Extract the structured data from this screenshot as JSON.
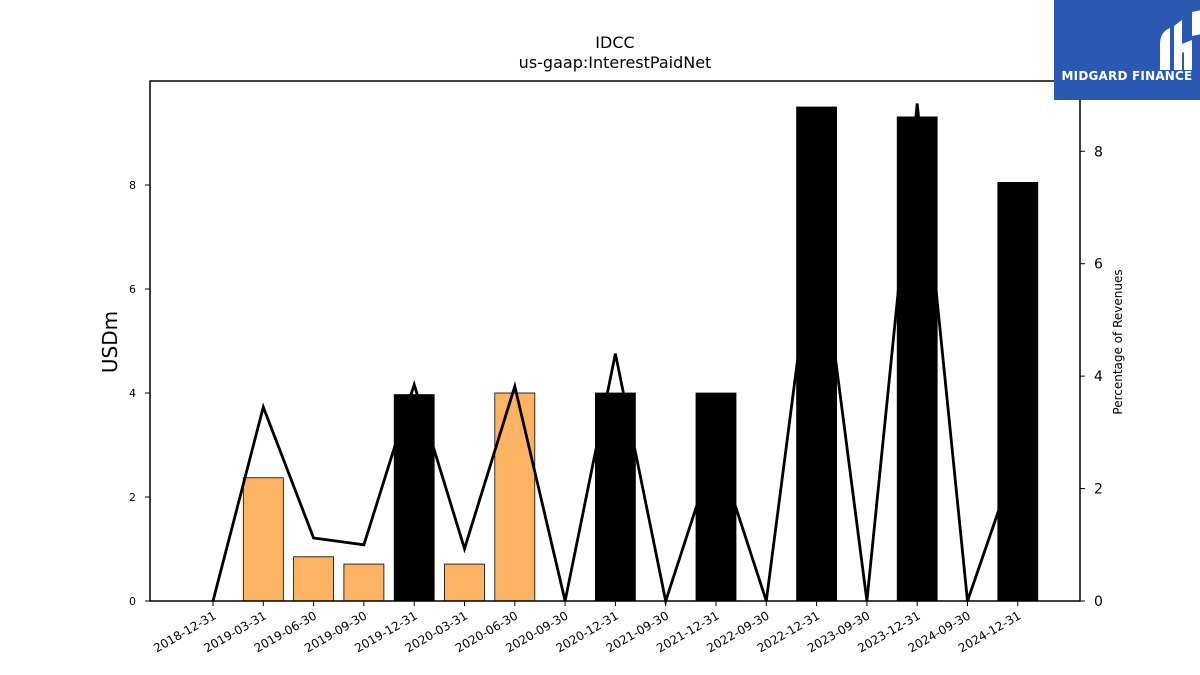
{
  "chart_data": {
    "type": "bar",
    "title": "IDCC",
    "subtitle": "us-gaap:InterestPaidNet",
    "ylabel": "USDm",
    "y2label": "Percentage of Revenues",
    "ylim": [
      0,
      10
    ],
    "y2lim": [
      0,
      9.25
    ],
    "yticks": [
      0,
      2,
      4,
      6,
      8
    ],
    "y2ticks": [
      0,
      2,
      4,
      6,
      8
    ],
    "categories": [
      "2018-12-31",
      "2019-03-31",
      "2019-06-30",
      "2019-09-30",
      "2019-12-31",
      "2020-03-31",
      "2020-06-30",
      "2020-09-30",
      "2020-12-31",
      "2021-09-30",
      "2021-12-31",
      "2022-09-30",
      "2022-12-31",
      "2023-09-30",
      "2023-12-31",
      "2024-09-30",
      "2024-12-31"
    ],
    "series": [
      {
        "type": "bar",
        "values": [
          0,
          2.37,
          0.85,
          0.71,
          3.97,
          0.71,
          4.0,
          0,
          4.0,
          0,
          4.0,
          0,
          9.5,
          0,
          9.31,
          0,
          8.05
        ],
        "colors": [
          "#fdb462",
          "#fdb462",
          "#fdb462",
          "#fdb462",
          "#000000",
          "#fdb462",
          "#fdb462",
          "#fdb462",
          "#000000",
          "#fdb462",
          "#000000",
          "#fdb462",
          "#000000",
          "#fdb462",
          "#000000",
          "#fdb462",
          "#000000"
        ]
      },
      {
        "type": "line",
        "axis": "right",
        "color": "#000000",
        "values": [
          0,
          3.45,
          1.12,
          1.0,
          3.85,
          0.93,
          3.82,
          0,
          4.4,
          0,
          2.75,
          0,
          6.9,
          0,
          8.85,
          0,
          2.6
        ]
      }
    ]
  },
  "logo": {
    "text": "MIDGARD FINANCE",
    "background": "#2b58b0"
  }
}
